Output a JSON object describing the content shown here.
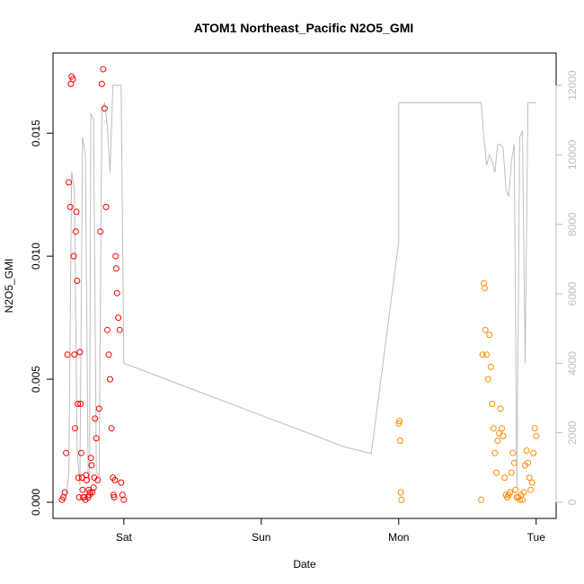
{
  "chart_data": {
    "type": "scatter",
    "title": "ATOM1 Northeast_Pacific N2O5_GMI",
    "xlabel": "Date",
    "ylabel": "N2O5_GMI",
    "x_unit": "days since first tick (Sat = 1)",
    "xlim": [
      0.55,
      4.08
    ],
    "ylim": [
      -0.0005,
      0.0178
    ],
    "x_ticks": [
      {
        "value": 1,
        "label": "Sat"
      },
      {
        "value": 2,
        "label": "Sun"
      },
      {
        "value": 3,
        "label": "Mon"
      },
      {
        "value": 4,
        "label": "Tue"
      }
    ],
    "y_ticks": [
      {
        "value": 0.0,
        "label": "0.000"
      },
      {
        "value": 0.005,
        "label": "0.005"
      },
      {
        "value": 0.01,
        "label": "0.010"
      },
      {
        "value": 0.015,
        "label": "0.015"
      }
    ],
    "y2_ticks": [
      {
        "value": 0,
        "label": "0"
      },
      {
        "value": 2000,
        "label": "2000"
      },
      {
        "value": 4000,
        "label": "4000"
      },
      {
        "value": 6000,
        "label": "6000"
      },
      {
        "value": 8000,
        "label": "8000"
      },
      {
        "value": 10000,
        "label": "10000"
      },
      {
        "value": 12000,
        "label": "12000"
      }
    ],
    "y2lim": [
      -300,
      12500
    ],
    "grid": false,
    "colors": {
      "series1": "#ff0000",
      "series2": "#ff8c00",
      "altitude": "#bebebe"
    },
    "series": [
      {
        "color": "#ff0000",
        "marker": "open-circle",
        "x": [
          0.55,
          0.56,
          0.57,
          0.58,
          0.59,
          0.6,
          0.61,
          0.615,
          0.62,
          0.63,
          0.635,
          0.64,
          0.645,
          0.65,
          0.655,
          0.66,
          0.665,
          0.67,
          0.675,
          0.68,
          0.685,
          0.69,
          0.695,
          0.7,
          0.705,
          0.71,
          0.72,
          0.725,
          0.73,
          0.74,
          0.745,
          0.75,
          0.755,
          0.76,
          0.765,
          0.77,
          0.78,
          0.785,
          0.79,
          0.8,
          0.81,
          0.82,
          0.83,
          0.84,
          0.85,
          0.86,
          0.87,
          0.88,
          0.89,
          0.9,
          0.91,
          0.92,
          0.925,
          0.93,
          0.935,
          0.94,
          0.945,
          0.95,
          0.96,
          0.97,
          0.98,
          0.99,
          1.0
        ],
        "y": [
          0.0001,
          0.0002,
          0.0004,
          0.002,
          0.006,
          0.013,
          0.012,
          0.017,
          0.0173,
          0.0172,
          0.01,
          0.006,
          0.003,
          0.011,
          0.0118,
          0.009,
          0.004,
          0.001,
          0.0002,
          0.0061,
          0.004,
          0.002,
          0.001,
          0.0005,
          0.0002,
          0.0002,
          0.0001,
          0.0011,
          0.0009,
          0.0002,
          0.0005,
          0.0003,
          0.0004,
          0.0018,
          0.0015,
          0.0004,
          0.0006,
          0.001,
          0.0034,
          0.0026,
          0.0009,
          0.0038,
          0.011,
          0.017,
          0.0176,
          0.016,
          0.012,
          0.007,
          0.006,
          0.005,
          0.003,
          0.001,
          0.0003,
          0.0002,
          0.0009,
          0.01,
          0.0095,
          0.0085,
          0.0075,
          0.007,
          0.0008,
          0.0003,
          0.0001
        ]
      },
      {
        "color": "#ff8c00",
        "marker": "open-circle",
        "x": [
          3.0,
          3.005,
          3.01,
          3.015,
          3.02,
          3.6,
          3.61,
          3.62,
          3.625,
          3.63,
          3.64,
          3.65,
          3.66,
          3.67,
          3.68,
          3.69,
          3.7,
          3.71,
          3.72,
          3.73,
          3.74,
          3.75,
          3.76,
          3.77,
          3.78,
          3.79,
          3.8,
          3.81,
          3.82,
          3.83,
          3.84,
          3.85,
          3.86,
          3.87,
          3.88,
          3.89,
          3.9,
          3.91,
          3.92,
          3.93,
          3.94,
          3.95,
          3.96,
          3.97,
          3.98,
          3.99,
          4.0
        ],
        "y": [
          0.0032,
          0.0033,
          0.0025,
          0.0004,
          0.0001,
          0.0001,
          0.006,
          0.0089,
          0.0087,
          0.007,
          0.006,
          0.005,
          0.0068,
          0.0055,
          0.004,
          0.003,
          0.002,
          0.0012,
          0.0025,
          0.0028,
          0.0038,
          0.003,
          0.0027,
          0.001,
          0.0003,
          0.0002,
          0.0003,
          0.0004,
          0.0012,
          0.002,
          0.0016,
          0.0005,
          0.0002,
          0.0002,
          0.0001,
          0.0003,
          0.0001,
          0.0004,
          0.0015,
          0.0021,
          0.0016,
          0.001,
          0.0005,
          0.0008,
          0.002,
          0.003,
          0.0027
        ]
      }
    ],
    "altitude_trace": {
      "axis": "right",
      "color": "#bebebe",
      "x": [
        0.55,
        0.58,
        0.6,
        0.62,
        0.64,
        0.66,
        0.68,
        0.7,
        0.72,
        0.74,
        0.75,
        0.76,
        0.78,
        0.8,
        0.82,
        0.84,
        0.86,
        0.88,
        0.9,
        0.92,
        0.94,
        0.96,
        0.98,
        1.0,
        1.2,
        1.4,
        1.6,
        1.8,
        2.0,
        2.2,
        2.4,
        2.6,
        2.8,
        3.0,
        3.0,
        3.005,
        3.01,
        3.015,
        3.02,
        3.02,
        3.3,
        3.6,
        3.62,
        3.64,
        3.66,
        3.68,
        3.7,
        3.72,
        3.74,
        3.76,
        3.78,
        3.8,
        3.82,
        3.84,
        3.86,
        3.88,
        3.9,
        3.92,
        3.94,
        3.96,
        3.98,
        4.0
      ],
      "y": [
        100,
        200,
        800,
        9500,
        9000,
        1500,
        500,
        10500,
        10000,
        800,
        600,
        11200,
        11000,
        900,
        700,
        11300,
        11500,
        10800,
        9500,
        12000,
        12000,
        12000,
        12000,
        4000,
        3700,
        3400,
        3100,
        2800,
        2500,
        2200,
        1900,
        1600,
        1400,
        7500,
        11500,
        11500,
        11500,
        11500,
        11500,
        11500,
        11500,
        11500,
        10500,
        9700,
        10000,
        9800,
        9500,
        10300,
        10300,
        10200,
        9000,
        8800,
        9800,
        10300,
        400,
        10500,
        10700,
        4000,
        11500,
        11500,
        11500,
        11500
      ]
    }
  }
}
